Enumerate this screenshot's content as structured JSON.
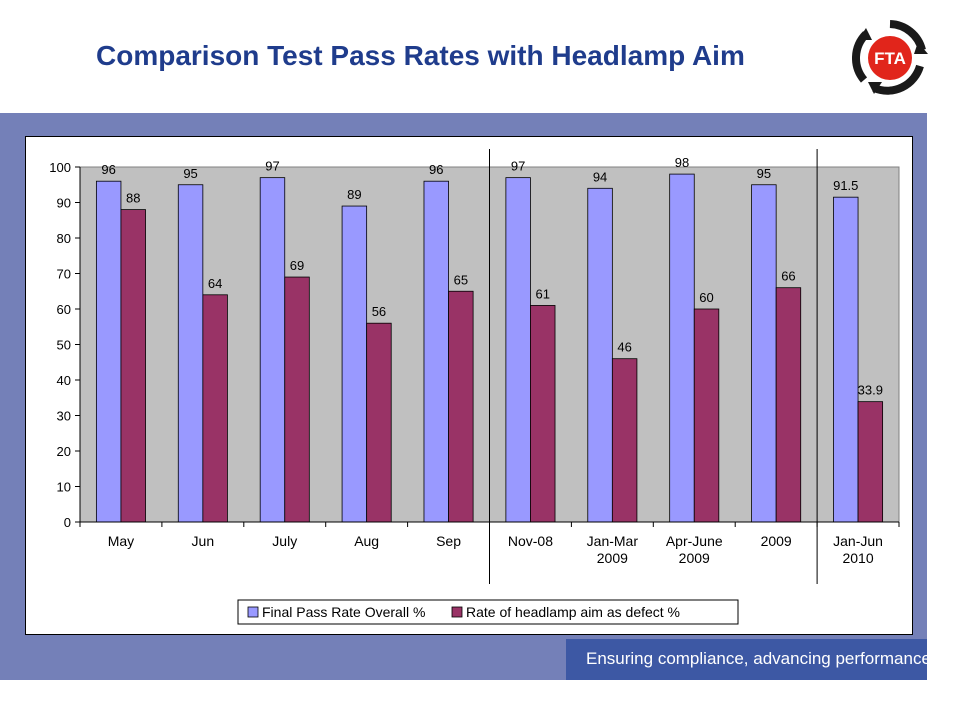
{
  "slide": {
    "title": "Comparison Test Pass Rates with Headlamp Aim",
    "tagline": "Ensuring compliance, advancing performance",
    "logo_text": "FTA"
  },
  "colors": {
    "title": "#1f3c8c",
    "panel": "#7480b8",
    "plot_bg": "#c0c0c0",
    "series1": "#9999ff",
    "series2": "#993366",
    "footer": "#3d58a4",
    "logo_red": "#e1251b"
  },
  "chart_data": {
    "type": "bar",
    "categories": [
      [
        "May"
      ],
      [
        "Jun"
      ],
      [
        "July"
      ],
      [
        "Aug"
      ],
      [
        "Sep"
      ],
      [
        "Nov-08"
      ],
      [
        "Jan-Mar",
        "2009"
      ],
      [
        "Apr-June",
        "2009"
      ],
      [
        "2009"
      ],
      [
        "Jan-Jun",
        "2010"
      ]
    ],
    "series": [
      {
        "name": "Final Pass Rate Overall %",
        "values": [
          96,
          95,
          97,
          89,
          96,
          97,
          94,
          98,
          95,
          91.5
        ]
      },
      {
        "name": "Rate of headlamp aim as defect %",
        "values": [
          88,
          64,
          69,
          56,
          65,
          61,
          46,
          60,
          66,
          33.9
        ]
      }
    ],
    "ylim": [
      0,
      100
    ],
    "yticks": [
      0,
      10,
      20,
      30,
      40,
      50,
      60,
      70,
      80,
      90,
      100
    ],
    "separators_after_index": [
      4,
      8
    ],
    "grid": false,
    "legend_position": "bottom"
  }
}
